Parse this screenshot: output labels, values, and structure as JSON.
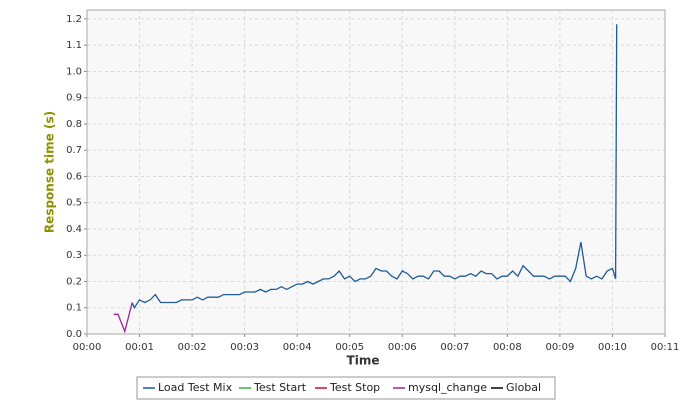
{
  "chart_data": {
    "type": "line",
    "y_label": "Response time (s)",
    "x_label": "Time",
    "xlim": [
      0,
      11
    ],
    "ylim": [
      0,
      1.234
    ],
    "xticks": [
      {
        "value": 0,
        "label": "00:00"
      },
      {
        "value": 1,
        "label": "00:01"
      },
      {
        "value": 2,
        "label": "00:02"
      },
      {
        "value": 3,
        "label": "00:03"
      },
      {
        "value": 4,
        "label": "00:04"
      },
      {
        "value": 5,
        "label": "00:05"
      },
      {
        "value": 6,
        "label": "00:06"
      },
      {
        "value": 7,
        "label": "00:07"
      },
      {
        "value": 8,
        "label": "00:08"
      },
      {
        "value": 9,
        "label": "00:09"
      },
      {
        "value": 10,
        "label": "00:10"
      },
      {
        "value": 11,
        "label": "00:11"
      }
    ],
    "yticks": [
      {
        "value": 0,
        "label": "0.0"
      },
      0.1,
      0.2,
      0.3,
      0.4,
      0.5,
      0.6,
      0.7,
      0.8,
      0.9,
      {
        "value": 1,
        "label": "1.0"
      },
      1.1,
      1.2
    ],
    "grid": true,
    "series": [
      {
        "name": "Load Test Mix",
        "color": "#1f5b99",
        "x": [
          0.86,
          0.9,
          1.0,
          1.1,
          1.2,
          1.3,
          1.4,
          1.5,
          1.6,
          1.7,
          1.8,
          1.9,
          2.0,
          2.1,
          2.2,
          2.3,
          2.4,
          2.5,
          2.6,
          2.7,
          2.8,
          2.9,
          3.0,
          3.1,
          3.2,
          3.3,
          3.4,
          3.5,
          3.6,
          3.7,
          3.8,
          3.9,
          4.0,
          4.1,
          4.2,
          4.3,
          4.4,
          4.5,
          4.6,
          4.7,
          4.8,
          4.9,
          5.0,
          5.1,
          5.2,
          5.3,
          5.4,
          5.5,
          5.6,
          5.7,
          5.8,
          5.9,
          6.0,
          6.1,
          6.2,
          6.3,
          6.4,
          6.5,
          6.6,
          6.7,
          6.8,
          6.9,
          7.0,
          7.1,
          7.2,
          7.3,
          7.4,
          7.5,
          7.6,
          7.7,
          7.8,
          7.9,
          8.0,
          8.1,
          8.2,
          8.3,
          8.4,
          8.5,
          8.6,
          8.7,
          8.8,
          8.9,
          9.0,
          9.1,
          9.2,
          9.3,
          9.4,
          9.5,
          9.6,
          9.7,
          9.8,
          9.9,
          10.0,
          10.06,
          10.08
        ],
        "values": [
          0.12,
          0.1,
          0.13,
          0.12,
          0.13,
          0.15,
          0.12,
          0.12,
          0.12,
          0.12,
          0.13,
          0.13,
          0.13,
          0.14,
          0.13,
          0.14,
          0.14,
          0.14,
          0.15,
          0.15,
          0.15,
          0.15,
          0.16,
          0.16,
          0.16,
          0.17,
          0.16,
          0.17,
          0.17,
          0.18,
          0.17,
          0.18,
          0.19,
          0.19,
          0.2,
          0.19,
          0.2,
          0.21,
          0.21,
          0.22,
          0.24,
          0.21,
          0.22,
          0.2,
          0.21,
          0.21,
          0.22,
          0.25,
          0.24,
          0.24,
          0.22,
          0.21,
          0.24,
          0.23,
          0.21,
          0.22,
          0.22,
          0.21,
          0.24,
          0.24,
          0.22,
          0.22,
          0.21,
          0.22,
          0.22,
          0.23,
          0.22,
          0.24,
          0.23,
          0.23,
          0.21,
          0.22,
          0.22,
          0.24,
          0.22,
          0.26,
          0.24,
          0.22,
          0.22,
          0.22,
          0.21,
          0.22,
          0.22,
          0.22,
          0.2,
          0.25,
          0.35,
          0.22,
          0.21,
          0.22,
          0.21,
          0.24,
          0.25,
          0.21,
          1.18
        ]
      },
      {
        "name": "Test Start",
        "color": "#3cb04a",
        "x": [],
        "values": []
      },
      {
        "name": "Test Stop",
        "color": "#c8102e",
        "x": [],
        "values": []
      },
      {
        "name": "mysql_change",
        "color": "#a0209a",
        "x": [
          0.51,
          0.59,
          0.72,
          0.86
        ],
        "values": [
          0.075,
          0.075,
          0.01,
          0.12
        ]
      },
      {
        "name": "Global",
        "color": "#000000",
        "x": [],
        "values": []
      }
    ]
  }
}
